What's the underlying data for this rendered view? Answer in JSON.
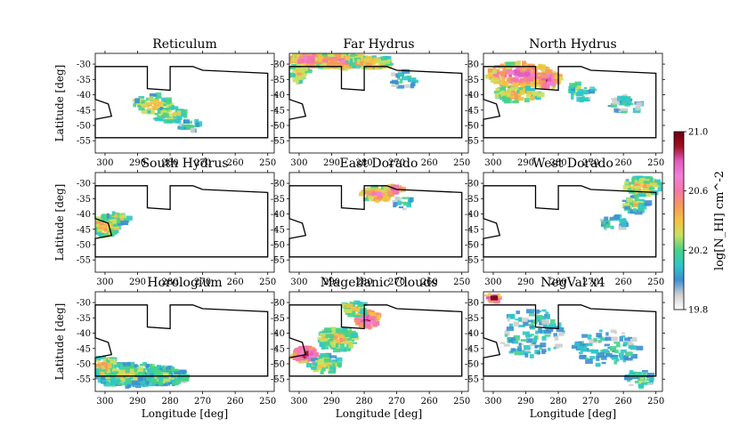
{
  "chart_data": {
    "type": "heatmap",
    "xlabel": "Longitude [deg]",
    "ylabel": "Latitude [deg]",
    "xlim": [
      303,
      248
    ],
    "ylim": [
      -59,
      -26.5
    ],
    "x_ticks": [
      "300",
      "290",
      "280",
      "270",
      "260",
      "250"
    ],
    "y_ticks": [
      "-30",
      "-35",
      "-40",
      "-45",
      "-50",
      "-55"
    ],
    "colorbar": {
      "label": "log[N_HI] cm^-2",
      "range": [
        19.8,
        21.0
      ],
      "ticks": [
        "21.0",
        "20.6",
        "20.2",
        "19.8"
      ],
      "colormap": [
        "#ffffff",
        "#cfcfcf",
        "#3d8fd1",
        "#2fc7c7",
        "#47d18a",
        "#c8e062",
        "#f5c243",
        "#f59a5c",
        "#f577a8",
        "#f27fd8",
        "#e05cc0",
        "#a01020",
        "#6e0010"
      ]
    },
    "panels": [
      {
        "name": "Reticulum",
        "xlabel": "",
        "ylabel": "Latitude [deg]"
      },
      {
        "name": "Far Hydrus",
        "xlabel": "",
        "ylabel": ""
      },
      {
        "name": "North Hydrus",
        "xlabel": "",
        "ylabel": ""
      },
      {
        "name": "South Hydrus",
        "xlabel": "",
        "ylabel": "Latitude [deg]"
      },
      {
        "name": "East Dorado",
        "xlabel": "",
        "ylabel": ""
      },
      {
        "name": "West Dorado",
        "xlabel": "",
        "ylabel": ""
      },
      {
        "name": "Horologium",
        "xlabel": "Longitude [deg]",
        "ylabel": "Latitude [deg]"
      },
      {
        "name": "Magellanic Clouds",
        "xlabel": "Longitude [deg]",
        "ylabel": ""
      },
      {
        "name": "NegVal x4",
        "xlabel": "Longitude [deg]",
        "ylabel": ""
      }
    ],
    "footprint_outline": [
      [
        303,
        -30.8
      ],
      [
        287,
        -30.8
      ],
      [
        287,
        -38
      ],
      [
        280,
        -38.5
      ],
      [
        280,
        -30.8
      ],
      [
        273,
        -30.8
      ],
      [
        270,
        -32
      ],
      [
        250,
        -33
      ],
      [
        250,
        -54
      ],
      [
        303,
        -54
      ],
      [
        303,
        -48
      ],
      [
        298,
        -47
      ],
      [
        299,
        -43
      ],
      [
        303,
        -41.5
      ]
    ],
    "legend": "none"
  }
}
